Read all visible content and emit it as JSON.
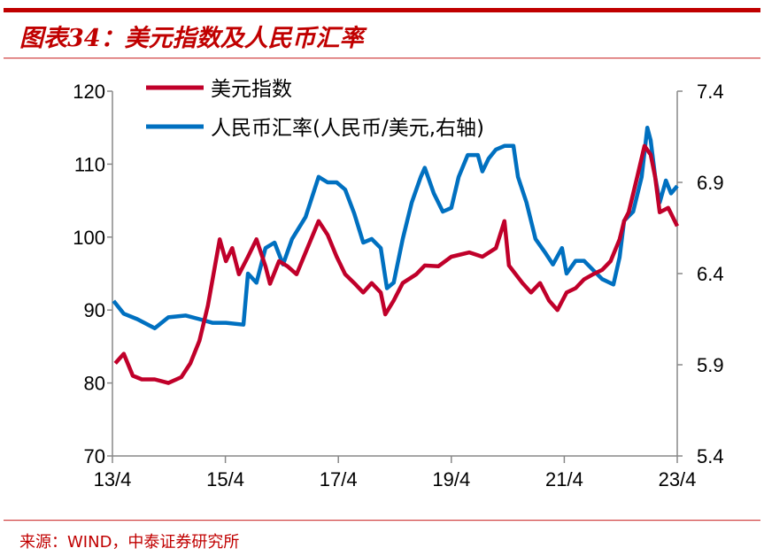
{
  "header": {
    "title": "图表34：美元指数及人民币汇率"
  },
  "footer": {
    "source": "来源：WIND，中泰证券研究所"
  },
  "colors": {
    "accent": "#c00000",
    "usd": "#c0002a",
    "cny": "#0070c0"
  },
  "chart_data": {
    "type": "line",
    "title": "图表34：美元指数及人民币汇率",
    "xlabel": "",
    "ylabel": "",
    "y2label": "",
    "xlim": [
      2013.25,
      2023.25
    ],
    "ylim": [
      70,
      120
    ],
    "y2lim": [
      5.4,
      7.4
    ],
    "x_ticks": [
      {
        "x": 2013.25,
        "label": "13/4"
      },
      {
        "x": 2015.25,
        "label": "15/4"
      },
      {
        "x": 2017.25,
        "label": "17/4"
      },
      {
        "x": 2019.25,
        "label": "19/4"
      },
      {
        "x": 2021.25,
        "label": "21/4"
      },
      {
        "x": 2023.25,
        "label": "23/4"
      }
    ],
    "y_ticks": [
      "70",
      "80",
      "90",
      "100",
      "110",
      "120"
    ],
    "y2_ticks": [
      "5.4",
      "5.9",
      "6.4",
      "6.9",
      "7.4"
    ],
    "grid": false,
    "legend_position": "top-left",
    "series": [
      {
        "name": "美元指数",
        "axis": "left",
        "color": "#c0002a",
        "x": [
          2013.3,
          2013.45,
          2013.61,
          2013.77,
          2014.0,
          2014.24,
          2014.47,
          2014.63,
          2014.79,
          2014.94,
          2015.15,
          2015.26,
          2015.37,
          2015.49,
          2015.65,
          2015.8,
          2015.96,
          2016.04,
          2016.2,
          2016.35,
          2016.51,
          2016.67,
          2016.9,
          2017.06,
          2017.22,
          2017.37,
          2017.53,
          2017.69,
          2017.84,
          2018.0,
          2018.08,
          2018.23,
          2018.39,
          2018.63,
          2018.78,
          2019.02,
          2019.25,
          2019.57,
          2019.8,
          2020.04,
          2020.19,
          2020.27,
          2020.51,
          2020.66,
          2020.82,
          2020.98,
          2021.13,
          2021.29,
          2021.45,
          2021.6,
          2021.76,
          2021.92,
          2022.07,
          2022.23,
          2022.31,
          2022.39,
          2022.54,
          2022.67,
          2022.78,
          2022.86,
          2022.94,
          2023.09,
          2023.25
        ],
        "values": [
          82.7,
          84.0,
          81.0,
          80.5,
          80.5,
          80.0,
          80.8,
          82.7,
          85.8,
          90.6,
          99.7,
          96.7,
          98.5,
          94.9,
          97.3,
          99.7,
          96.0,
          93.6,
          96.7,
          96.0,
          94.9,
          97.9,
          102.2,
          100.3,
          97.3,
          94.9,
          93.7,
          92.4,
          93.7,
          92.4,
          89.4,
          91.3,
          93.7,
          94.9,
          96.1,
          96.0,
          97.3,
          97.9,
          97.3,
          98.5,
          102.2,
          96.1,
          93.7,
          92.4,
          93.7,
          91.3,
          90.0,
          92.4,
          93.0,
          94.2,
          94.9,
          95.5,
          96.7,
          99.7,
          102.2,
          103.4,
          108.2,
          112.5,
          111.3,
          108.2,
          103.4,
          104.0,
          101.5
        ]
      },
      {
        "name": "人民币汇率(人民币/美元,右轴)",
        "axis": "right",
        "color": "#0070c0",
        "x": [
          2013.27,
          2013.45,
          2013.69,
          2014.0,
          2014.24,
          2014.55,
          2014.79,
          2015.02,
          2015.26,
          2015.57,
          2015.65,
          2015.8,
          2015.96,
          2016.12,
          2016.27,
          2016.43,
          2016.67,
          2016.9,
          2017.06,
          2017.22,
          2017.37,
          2017.53,
          2017.69,
          2017.84,
          2018.0,
          2018.11,
          2018.23,
          2018.39,
          2018.55,
          2018.71,
          2018.78,
          2018.94,
          2019.1,
          2019.25,
          2019.38,
          2019.54,
          2019.72,
          2019.8,
          2019.91,
          2020.04,
          2020.19,
          2020.35,
          2020.43,
          2020.58,
          2020.74,
          2020.9,
          2021.05,
          2021.21,
          2021.29,
          2021.45,
          2021.6,
          2021.76,
          2021.92,
          2022.12,
          2022.23,
          2022.31,
          2022.47,
          2022.62,
          2022.72,
          2022.78,
          2022.86,
          2022.94,
          2023.05,
          2023.14,
          2023.25
        ],
        "values": [
          6.25,
          6.18,
          6.15,
          6.1,
          6.16,
          6.17,
          6.15,
          6.13,
          6.13,
          6.12,
          6.4,
          6.35,
          6.54,
          6.57,
          6.45,
          6.59,
          6.71,
          6.93,
          6.9,
          6.9,
          6.86,
          6.73,
          6.57,
          6.59,
          6.54,
          6.32,
          6.35,
          6.59,
          6.79,
          6.93,
          6.98,
          6.84,
          6.74,
          6.76,
          6.93,
          7.05,
          7.05,
          6.96,
          7.03,
          7.08,
          7.1,
          7.1,
          6.93,
          6.79,
          6.59,
          6.52,
          6.45,
          6.54,
          6.4,
          6.47,
          6.47,
          6.42,
          6.37,
          6.34,
          6.49,
          6.69,
          6.74,
          6.93,
          7.2,
          7.13,
          6.93,
          6.79,
          6.91,
          6.84,
          6.88
        ]
      }
    ]
  }
}
